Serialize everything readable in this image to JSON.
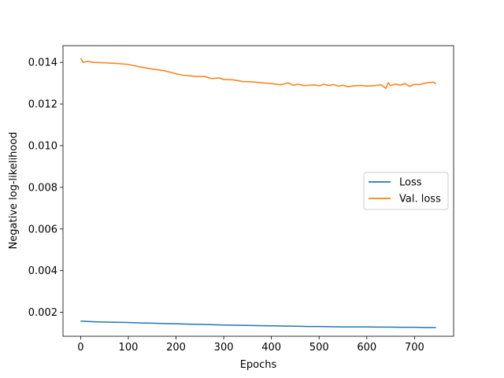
{
  "chart_data": {
    "type": "line",
    "xlabel": "Epochs",
    "ylabel": "Negative log-likelihood",
    "xlim": [
      -37,
      782
    ],
    "ylim": [
      0.00085,
      0.0148
    ],
    "xticks": [
      0,
      100,
      200,
      300,
      400,
      500,
      600,
      700
    ],
    "yticks": [
      0.002,
      0.004,
      0.006,
      0.008,
      0.01,
      0.012,
      0.014
    ],
    "ytick_labels": [
      "0.002",
      "0.004",
      "0.006",
      "0.008",
      "0.010",
      "0.012",
      "0.014"
    ],
    "grid": false,
    "legend_position": "center-right",
    "series": [
      {
        "name": "Loss",
        "color": "#1f77b4",
        "x": [
          0,
          25,
          50,
          75,
          100,
          125,
          150,
          175,
          200,
          225,
          250,
          275,
          300,
          325,
          350,
          375,
          400,
          425,
          450,
          475,
          500,
          525,
          550,
          575,
          600,
          625,
          650,
          675,
          700,
          725,
          745
        ],
        "y": [
          0.00158,
          0.00155,
          0.00153,
          0.00152,
          0.00151,
          0.00149,
          0.00148,
          0.00146,
          0.00145,
          0.00143,
          0.00142,
          0.00141,
          0.00139,
          0.00138,
          0.00137,
          0.00136,
          0.00135,
          0.00134,
          0.00133,
          0.00132,
          0.00132,
          0.00131,
          0.0013,
          0.0013,
          0.0013,
          0.00129,
          0.00129,
          0.00128,
          0.00128,
          0.00127,
          0.00127
        ]
      },
      {
        "name": "Val. loss",
        "color": "#ff7f0e",
        "x": [
          0,
          5,
          15,
          25,
          50,
          75,
          100,
          125,
          150,
          175,
          200,
          215,
          230,
          245,
          260,
          275,
          290,
          300,
          320,
          340,
          360,
          380,
          400,
          420,
          435,
          445,
          455,
          470,
          480,
          490,
          500,
          510,
          520,
          530,
          540,
          550,
          560,
          575,
          590,
          600,
          615,
          630,
          640,
          645,
          650,
          660,
          670,
          680,
          690,
          700,
          710,
          720,
          730,
          740,
          745
        ],
        "y": [
          0.0142,
          0.014,
          0.01405,
          0.014,
          0.01398,
          0.01395,
          0.0139,
          0.01378,
          0.01368,
          0.0136,
          0.01345,
          0.01338,
          0.01335,
          0.01332,
          0.01332,
          0.01322,
          0.01325,
          0.01318,
          0.01316,
          0.01308,
          0.01306,
          0.01302,
          0.01298,
          0.01292,
          0.01302,
          0.0129,
          0.01295,
          0.01288,
          0.0129,
          0.01292,
          0.01287,
          0.01295,
          0.01289,
          0.01293,
          0.01286,
          0.0129,
          0.01283,
          0.01288,
          0.01289,
          0.01286,
          0.01288,
          0.01292,
          0.01275,
          0.01302,
          0.01288,
          0.01296,
          0.0129,
          0.01298,
          0.01284,
          0.01295,
          0.01293,
          0.01299,
          0.01303,
          0.01305,
          0.01296
        ]
      }
    ]
  }
}
